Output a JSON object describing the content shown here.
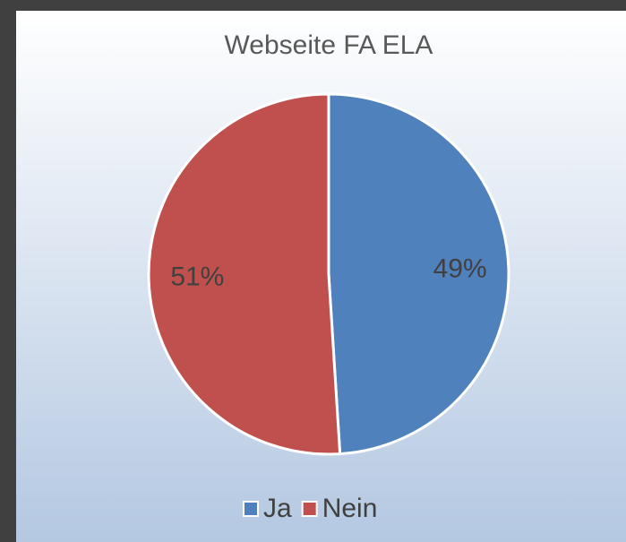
{
  "chart_data": {
    "type": "pie",
    "title": "Webseite FA ELA",
    "categories": [
      "Ja",
      "Nein"
    ],
    "values": [
      49,
      51
    ],
    "value_labels": [
      "49%",
      "51%"
    ],
    "colors": [
      "#4f81bd",
      "#c0504d"
    ],
    "legend": "bottom"
  }
}
